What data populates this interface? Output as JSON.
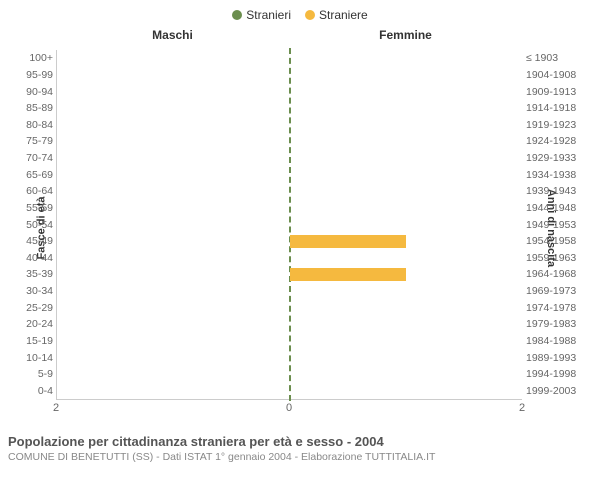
{
  "legend": {
    "male": {
      "label": "Stranieri",
      "color": "#6b8e4e"
    },
    "female": {
      "label": "Straniere",
      "color": "#f5b93f"
    }
  },
  "pane_titles": {
    "left": "Maschi",
    "right": "Femmine"
  },
  "axes": {
    "left_title": "Fasce di età",
    "right_title": "Anni di nascita",
    "xmax": 2,
    "xticks": [
      {
        "pos": 0,
        "label": "2"
      },
      {
        "pos": 50,
        "label": "0"
      },
      {
        "pos": 100,
        "label": "2"
      }
    ]
  },
  "rows": [
    {
      "age": "100+",
      "birth": "≤ 1903",
      "m": 0,
      "f": 0
    },
    {
      "age": "95-99",
      "birth": "1904-1908",
      "m": 0,
      "f": 0
    },
    {
      "age": "90-94",
      "birth": "1909-1913",
      "m": 0,
      "f": 0
    },
    {
      "age": "85-89",
      "birth": "1914-1918",
      "m": 0,
      "f": 0
    },
    {
      "age": "80-84",
      "birth": "1919-1923",
      "m": 0,
      "f": 0
    },
    {
      "age": "75-79",
      "birth": "1924-1928",
      "m": 0,
      "f": 0
    },
    {
      "age": "70-74",
      "birth": "1929-1933",
      "m": 0,
      "f": 0
    },
    {
      "age": "65-69",
      "birth": "1934-1938",
      "m": 0,
      "f": 0
    },
    {
      "age": "60-64",
      "birth": "1939-1943",
      "m": 0,
      "f": 0
    },
    {
      "age": "55-59",
      "birth": "1944-1948",
      "m": 0,
      "f": 0
    },
    {
      "age": "50-54",
      "birth": "1949-1953",
      "m": 0,
      "f": 0
    },
    {
      "age": "45-49",
      "birth": "1954-1958",
      "m": 0,
      "f": 1
    },
    {
      "age": "40-44",
      "birth": "1959-1963",
      "m": 0,
      "f": 0
    },
    {
      "age": "35-39",
      "birth": "1964-1968",
      "m": 0,
      "f": 1
    },
    {
      "age": "30-34",
      "birth": "1969-1973",
      "m": 0,
      "f": 0
    },
    {
      "age": "25-29",
      "birth": "1974-1978",
      "m": 0,
      "f": 0
    },
    {
      "age": "20-24",
      "birth": "1979-1983",
      "m": 0,
      "f": 0
    },
    {
      "age": "15-19",
      "birth": "1984-1988",
      "m": 0,
      "f": 0
    },
    {
      "age": "10-14",
      "birth": "1989-1993",
      "m": 0,
      "f": 0
    },
    {
      "age": "5-9",
      "birth": "1994-1998",
      "m": 0,
      "f": 0
    },
    {
      "age": "0-4",
      "birth": "1999-2003",
      "m": 0,
      "f": 0
    }
  ],
  "colors": {
    "male_bar": "#6b8e4e",
    "female_bar": "#f5b93f",
    "background": "#ffffff",
    "border": "#cccccc",
    "text_muted": "#666666"
  },
  "caption": {
    "title": "Popolazione per cittadinanza straniera per età e sesso - 2004",
    "sub": "COMUNE DI BENETUTTI (SS) - Dati ISTAT 1° gennaio 2004 - Elaborazione TUTTITALIA.IT"
  }
}
